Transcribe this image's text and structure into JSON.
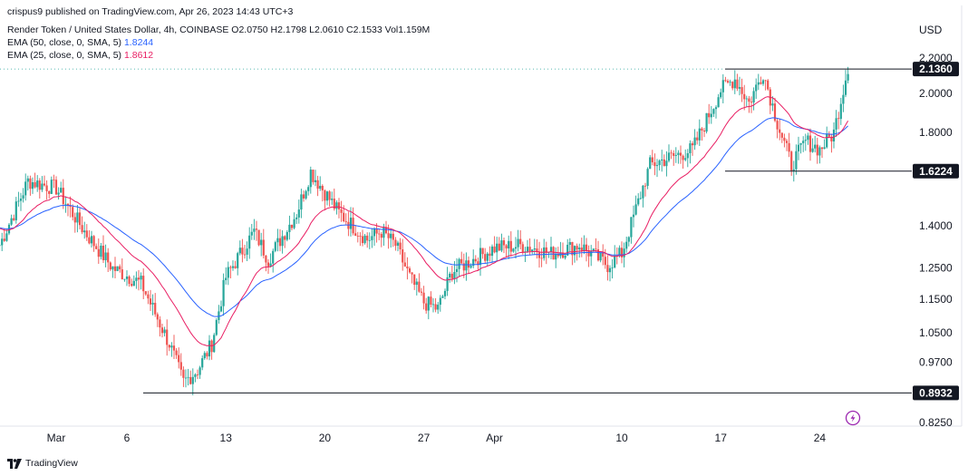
{
  "header": {
    "publisher": "crispus9 published on TradingView.com, Apr 26, 2023 14:43 UTC+3",
    "symbol": "Render Token / United States Dollar, 4h, COINBASE",
    "ohlc": {
      "o_label": "O",
      "o": "2.0750",
      "h_label": "H",
      "h": "2.1798",
      "l_label": "L",
      "l": "2.0610",
      "c_label": "C",
      "c": "2.1533",
      "vol_label": "Vol",
      "vol": "1.159M"
    },
    "ema50": {
      "label": "EMA (50, close, 0, SMA, 5)",
      "value": "1.8244"
    },
    "ema25": {
      "label": "EMA (25, close, 0, SMA, 5)",
      "value": "1.8612"
    }
  },
  "currency": "USD",
  "footer": {
    "brand": "TradingView"
  },
  "colors": {
    "up": "#26a69a",
    "down": "#ef5350",
    "ema50": "#2962ff",
    "ema25": "#e91e63",
    "level": "#131722",
    "badge": "#131722"
  },
  "chart_data": {
    "type": "line",
    "y_scale": "log",
    "y_ticks": [
      "2.2000",
      "2.0000",
      "1.8000",
      "1.4000",
      "1.2500",
      "1.1500",
      "1.0500",
      "0.9700",
      "0.8250"
    ],
    "x_ticks": [
      "Mar",
      "6",
      "13",
      "20",
      "27",
      "Apr",
      "10",
      "17",
      "24"
    ],
    "levels": [
      {
        "label": "2.1360",
        "value": 2.136
      },
      {
        "label": "1.6224",
        "value": 1.6224
      },
      {
        "label": "0.8932",
        "value": 0.8932
      }
    ],
    "price_anchors": [
      [
        "Feb 25",
        1.33
      ],
      [
        "Feb 27",
        1.58
      ],
      [
        "Mar 1",
        1.55
      ],
      [
        "Mar 3",
        1.38
      ],
      [
        "Mar 5",
        1.25
      ],
      [
        "Mar 7",
        1.2
      ],
      [
        "Mar 9",
        1.02
      ],
      [
        "Mar 10",
        0.92
      ],
      [
        "Mar 11",
        0.95
      ],
      [
        "Mar 12",
        1.02
      ],
      [
        "Mar 13",
        1.22
      ],
      [
        "Mar 15",
        1.38
      ],
      [
        "Mar 16",
        1.28
      ],
      [
        "Mar 18",
        1.45
      ],
      [
        "Mar 19",
        1.62
      ],
      [
        "Mar 21",
        1.45
      ],
      [
        "Mar 23",
        1.35
      ],
      [
        "Mar 24",
        1.38
      ],
      [
        "Mar 25",
        1.33
      ],
      [
        "Mar 26",
        1.22
      ],
      [
        "Mar 27",
        1.14
      ],
      [
        "Mar 28",
        1.12
      ],
      [
        "Mar 29",
        1.24
      ],
      [
        "Apr 1",
        1.32
      ],
      [
        "Apr 3",
        1.33
      ],
      [
        "Apr 5",
        1.3
      ],
      [
        "Apr 7",
        1.33
      ],
      [
        "Apr 9",
        1.26
      ],
      [
        "Apr 10",
        1.3
      ],
      [
        "Apr 12",
        1.65
      ],
      [
        "Apr 15",
        1.72
      ],
      [
        "Apr 17",
        2.02
      ],
      [
        "Apr 18",
        2.08
      ],
      [
        "Apr 19",
        1.95
      ],
      [
        "Apr 20",
        2.12
      ],
      [
        "Apr 21",
        1.85
      ],
      [
        "Apr 22",
        1.65
      ],
      [
        "Apr 23",
        1.76
      ],
      [
        "Apr 24",
        1.72
      ],
      [
        "Apr 25",
        1.8
      ],
      [
        "Apr 26",
        2.15
      ]
    ]
  }
}
